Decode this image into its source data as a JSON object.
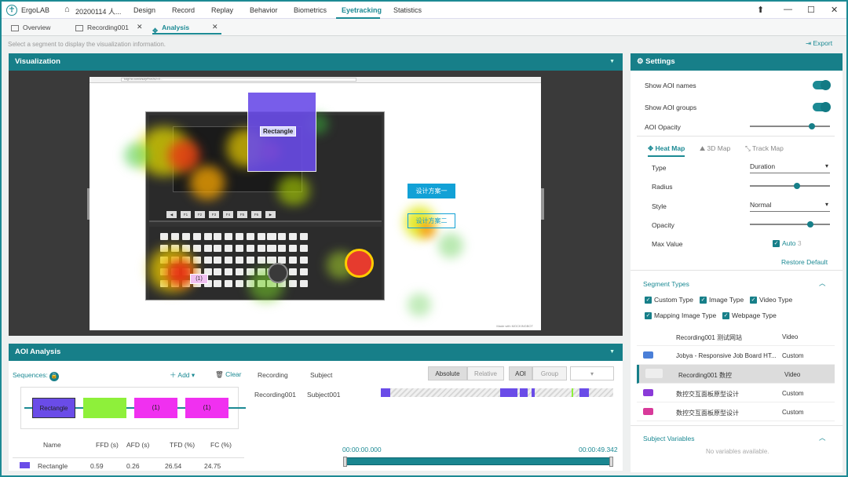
{
  "app": {
    "name": "ErgoLAB",
    "project": "20200114 人..."
  },
  "menu": [
    "Design",
    "Record",
    "Replay",
    "Behavior",
    "Biometrics",
    "Eyetracking",
    "Statistics"
  ],
  "window_controls": {
    "pin": "⬆",
    "minimize": "—",
    "maximize": "☐",
    "close": "✕"
  },
  "tabs": [
    {
      "label": "Overview"
    },
    {
      "label": "Recording001"
    },
    {
      "label": "Analysis"
    }
  ],
  "hint": "Select a segment to display the visualization information.",
  "export_label": "Export",
  "visualization": {
    "title": "Visualization",
    "browser_url": "kdgf.hx.com/zhui/pFh/e2k2=0...",
    "aoi_rect_label": "Rectangle",
    "aoi_one_label": "(1)",
    "design_one": "设计方案一",
    "design_two": "设计方案二",
    "made_with": "Made with MOCKINGBOT"
  },
  "aoi_analysis": {
    "title": "AOI Analysis",
    "sequences_label": "Sequences:",
    "add_label": "Add",
    "clear_label": "Clear",
    "sequence_nodes": [
      "Rectangle",
      "",
      "(1)",
      "(1)"
    ],
    "node_colors": [
      "#6a4ce8",
      "#8ef03a",
      "#f030f0",
      "#f030f0"
    ],
    "table": {
      "headers": [
        "Name",
        "FFD (s)",
        "AFD (s)",
        "TFD (%)",
        "FC (%)"
      ],
      "rows": [
        {
          "name": "Rectangle",
          "ffd": "0.59",
          "afd": "0.26",
          "tfd": "26.54",
          "fc": "24.75"
        }
      ]
    },
    "recording_header": "Recording",
    "subject_header": "Subject",
    "toggle_absolute": "Absolute",
    "toggle_relative": "Relative",
    "toggle_aoi": "AOI",
    "toggle_group": "Group",
    "recording_name": "Recording001",
    "subject_name": "Subject001",
    "time_start": "00:00:00.000",
    "time_end": "00:00:49.342"
  },
  "settings": {
    "title": "Settings",
    "show_aoi_names": "Show AOI names",
    "show_aoi_groups": "Show AOI groups",
    "aoi_opacity": "AOI Opacity",
    "aoi_opacity_value": 0.8,
    "map_tabs": [
      "Heat Map",
      "3D Map",
      "Track Map"
    ],
    "type_label": "Type",
    "type_value": "Duration",
    "radius_label": "Radius",
    "radius_value": 0.6,
    "style_label": "Style",
    "style_value": "Normal",
    "opacity_label": "Opacity",
    "opacity_value": 0.78,
    "max_value_label": "Max Value",
    "auto_label": "Auto",
    "auto_value": "3",
    "restore_default": "Restore Default",
    "segment_types_title": "Segment Types",
    "segment_checks": [
      "Custom Type",
      "Image Type",
      "Video Type",
      "Mapping Image Type",
      "Webpage Type"
    ],
    "segments": [
      {
        "name": "Recording001 测试网站",
        "type": "Video"
      },
      {
        "name": "Jobya - Responsive Job Board HT...",
        "type": "Custom"
      },
      {
        "name": "Recording001 数控",
        "type": "Video"
      },
      {
        "name": "数控交互面板原型设计",
        "type": "Custom"
      },
      {
        "name": "数控交互面板原型设计",
        "type": "Custom"
      }
    ],
    "subject_variables_title": "Subject Variables",
    "no_variables": "No variables available.",
    "accent_color": "#177f89"
  }
}
